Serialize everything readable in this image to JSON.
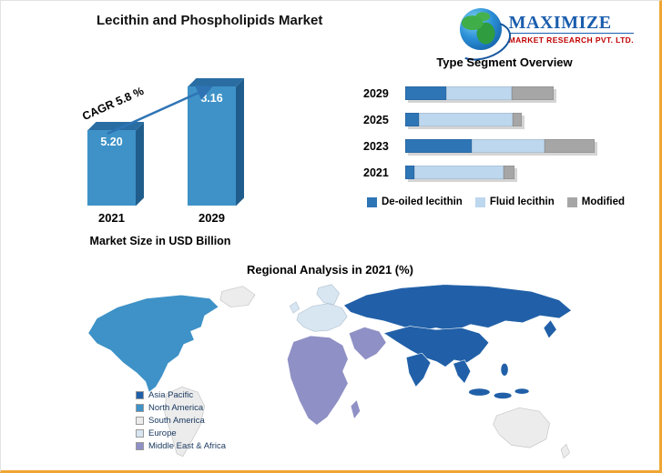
{
  "header": {
    "title": "Lecithin and Phospholipids Market",
    "logo": {
      "name": "MAXIMIZE",
      "subtitle": "MARKET RESEARCH PVT. LTD."
    }
  },
  "chart_data": [
    {
      "id": "market_size",
      "type": "bar",
      "title": "Market Size in USD Billion",
      "annotation": "CAGR 5.8 %",
      "categories": [
        "2021",
        "2029"
      ],
      "values": [
        5.2,
        8.16
      ],
      "value_labels": [
        "5.20",
        "8.16"
      ],
      "ylabel": "USD Billion",
      "bar_colors": {
        "front": "#3E92C7",
        "top": "#2A6DA3",
        "side": "#205D8C"
      },
      "annotation_arrow_color": "#2E74B5"
    },
    {
      "id": "type_segment",
      "type": "bar",
      "subtype": "stacked-horizontal",
      "title": "Type Segment Overview",
      "categories": [
        "2029",
        "2025",
        "2023",
        "2021"
      ],
      "series": [
        {
          "name": "De-oiled lecithin",
          "color": "#2E75B6",
          "values": [
            45,
            15,
            73,
            10
          ]
        },
        {
          "name": "Fluid lecithin",
          "color": "#BDD7EE",
          "values": [
            72,
            103,
            80,
            98
          ]
        },
        {
          "name": "Modified",
          "color": "#A6A6A6",
          "values": [
            46,
            10,
            55,
            12
          ]
        }
      ],
      "note": "segment lengths are relative units read from bar proportions; no value axis shown",
      "legend_position": "bottom"
    },
    {
      "id": "regional_analysis",
      "type": "map",
      "title": "Regional Analysis in 2021 (%)",
      "regions": [
        {
          "label": "Asia Pacific",
          "color": "#2160A8"
        },
        {
          "label": "North America",
          "color": "#3E92C7"
        },
        {
          "label": "South America",
          "color": "#ECECEC"
        },
        {
          "label": "Europe",
          "color": "#D8E6F2"
        },
        {
          "label": "Middle East & Africa",
          "color": "#8F90C5"
        }
      ],
      "other_land_color": "#ECECEC",
      "legend_position": "bottom-left"
    }
  ]
}
